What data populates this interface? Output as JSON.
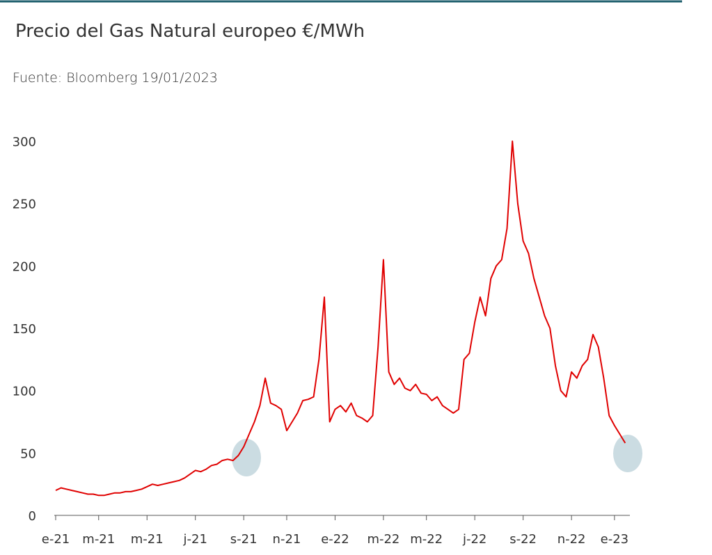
{
  "chart_data": {
    "type": "line",
    "title": "Precio del Gas Natural europeo €/MWh",
    "subtitle": "Fuente: Bloomberg 19/01/2023",
    "categories": [
      "e-21",
      null,
      null,
      null,
      null,
      null,
      null,
      null,
      "m-21",
      null,
      null,
      null,
      null,
      null,
      null,
      null,
      null,
      "m-21",
      null,
      null,
      null,
      null,
      null,
      null,
      null,
      null,
      "j-21",
      null,
      null,
      null,
      null,
      null,
      null,
      null,
      null,
      "s-21",
      null,
      null,
      null,
      null,
      null,
      null,
      null,
      "n-21",
      null,
      null,
      null,
      null,
      null,
      null,
      null,
      null,
      "e-22",
      null,
      null,
      null,
      null,
      null,
      null,
      null,
      null,
      "m-22",
      null,
      null,
      null,
      null,
      null,
      null,
      null,
      "m-22",
      null,
      null,
      null,
      null,
      null,
      null,
      null,
      null,
      "j-22",
      null,
      null,
      null,
      null,
      null,
      null,
      null,
      null,
      "s-22",
      null,
      null,
      null,
      null,
      null,
      null,
      null,
      null,
      "n-22",
      null,
      null,
      null,
      null,
      null,
      null,
      null,
      "e-23",
      null,
      null
    ],
    "values": [
      20,
      22,
      21,
      20,
      19,
      18,
      17,
      17,
      16,
      16,
      17,
      18,
      18,
      19,
      19,
      20,
      21,
      23,
      25,
      24,
      25,
      26,
      27,
      28,
      30,
      33,
      36,
      35,
      37,
      40,
      41,
      44,
      45,
      44,
      48,
      55,
      65,
      75,
      88,
      110,
      90,
      88,
      85,
      68,
      75,
      82,
      92,
      93,
      95,
      125,
      175,
      75,
      85,
      88,
      83,
      90,
      80,
      78,
      75,
      80,
      135,
      205,
      115,
      105,
      110,
      102,
      100,
      105,
      98,
      97,
      92,
      95,
      88,
      85,
      82,
      85,
      125,
      130,
      155,
      175,
      160,
      190,
      200,
      205,
      230,
      300,
      250,
      220,
      210,
      190,
      175,
      160,
      150,
      120,
      100,
      95,
      115,
      110,
      120,
      125,
      145,
      135,
      110,
      80,
      72,
      65,
      58
    ],
    "color": "#e00000",
    "ylim": [
      0,
      300
    ],
    "yticks": [
      0,
      50,
      100,
      150,
      200,
      250,
      300
    ],
    "grid": false
  }
}
